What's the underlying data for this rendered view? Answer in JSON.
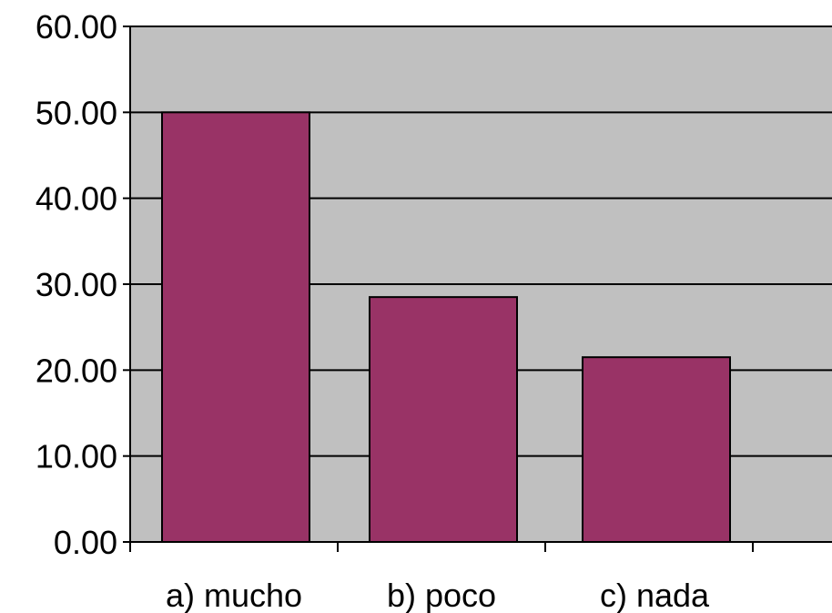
{
  "chart_data": {
    "type": "bar",
    "categories": [
      "a) mucho",
      "b) poco",
      "c) nada"
    ],
    "values": [
      50.0,
      28.5,
      21.5
    ],
    "ylim": [
      0,
      60
    ],
    "yticks": [
      "0.00",
      "10.00",
      "20.00",
      "30.00",
      "40.00",
      "50.00",
      "60.00"
    ],
    "ytick_values": [
      0,
      10,
      20,
      30,
      40,
      50,
      60
    ],
    "grid": true,
    "legend": "none",
    "colors": {
      "bar": "#993366",
      "plot_background": "#c0c0c0",
      "gridline": "#000000"
    }
  }
}
